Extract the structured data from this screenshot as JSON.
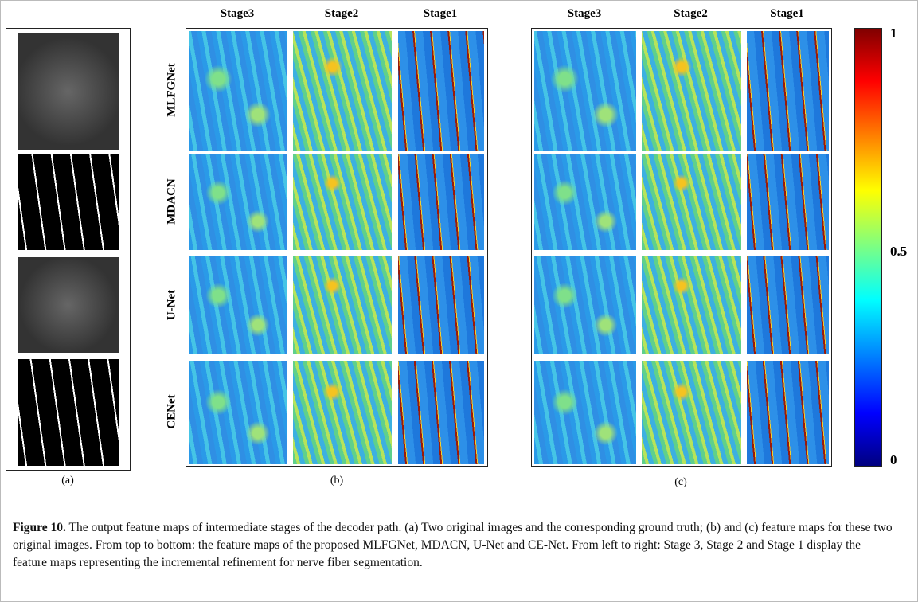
{
  "panel_a": {
    "label": "(a)"
  },
  "panel_b": {
    "label": "(b)",
    "columns": [
      "Stage3",
      "Stage2",
      "Stage1"
    ],
    "rows": [
      "MLFGNet",
      "MDACN",
      "U-Net",
      "CENet"
    ]
  },
  "panel_c": {
    "label": "(c)",
    "columns": [
      "Stage3",
      "Stage2",
      "Stage1"
    ]
  },
  "colorbar": {
    "ticks": [
      1,
      0.5,
      0
    ]
  },
  "caption": {
    "label": "Figure 10.",
    "text": "The output feature maps of intermediate stages of the decoder path. (a) Two original images and the corresponding ground truth; (b) and (c) feature maps for these two original images. From top to bottom: the feature maps of the proposed MLFGNet, MDACN, U-Net and CE-Net. From left to right: Stage 3, Stage 2 and Stage 1 display the feature maps representing the incremental refinement for nerve fiber segmentation."
  }
}
